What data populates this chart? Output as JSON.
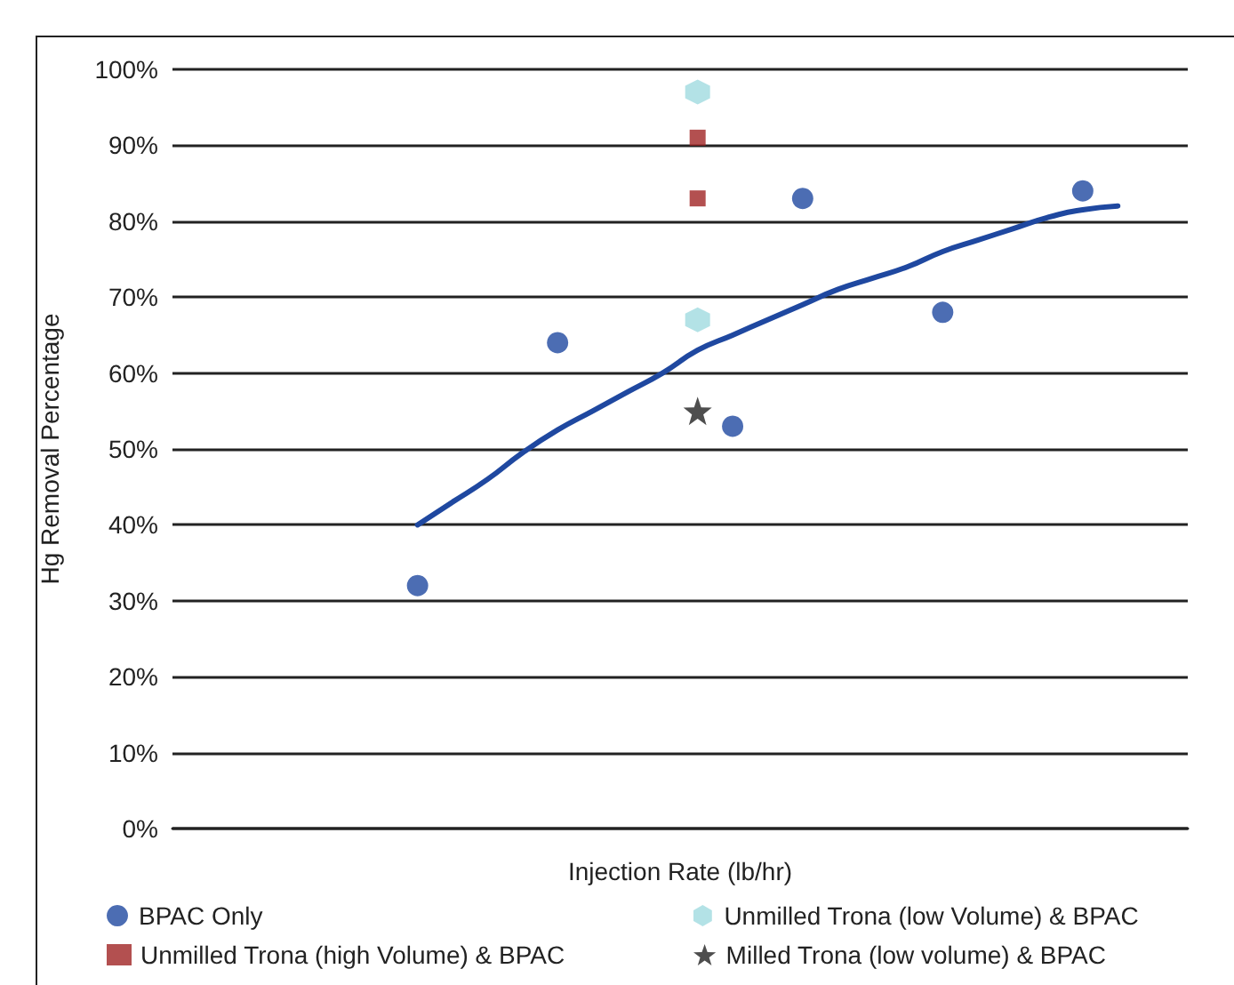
{
  "chart_data": {
    "type": "scatter",
    "xlabel": "Injection Rate (lb/hr)",
    "ylabel": "Hg Removal Percentage",
    "categories": [
      null,
      null,
      null,
      null,
      null,
      null,
      null,
      null,
      null,
      null,
      null,
      null,
      null,
      null,
      null,
      null,
      null,
      null,
      null,
      null,
      null,
      null,
      null,
      null,
      null,
      null,
      null,
      null,
      null,
      null
    ],
    "series": [
      {
        "name": "BPAC Only",
        "color": "#1f48a0",
        "marker": "circle",
        "values": [
          null,
          null,
          null,
          null,
          null,
          null,
          null,
          32,
          null,
          null,
          null,
          64,
          null,
          null,
          null,
          null,
          53,
          null,
          83,
          null,
          null,
          null,
          68,
          null,
          null,
          null,
          84,
          null,
          null,
          null
        ]
      },
      {
        "name": "Unmilled Trona (low Volume) & BPAC",
        "color": "#a0dbe0",
        "values": [
          null,
          null,
          null,
          null,
          null,
          null,
          null,
          null,
          null,
          null,
          null,
          null,
          null,
          null,
          null,
          97,
          null,
          null,
          null,
          null,
          null,
          null,
          null,
          null,
          null,
          null,
          null,
          null,
          null,
          null
        ]
      },
      {
        "name": "Unmilled Trona (high Volume) & BPAC",
        "color": "#a02424",
        "marker": "square",
        "values": [
          null,
          null,
          null,
          null,
          null,
          null,
          null,
          null,
          null,
          null,
          null,
          null,
          null,
          null,
          null,
          91,
          null,
          null,
          null,
          null,
          null,
          null,
          null,
          null,
          null,
          null,
          null,
          null,
          null,
          null
        ]
      },
      {
        "name": "Milled Trona (low volume) & BPAC",
        "color": "#222222",
        "marker": "star",
        "values": [
          null,
          null,
          null,
          null,
          null,
          null,
          null,
          null,
          null,
          null,
          null,
          null,
          null,
          null,
          null,
          55,
          null,
          null,
          null,
          null,
          null,
          null,
          null,
          null,
          null,
          null,
          null,
          null,
          null,
          null
        ]
      },
      {
        "color": "#a0dbe0",
        "values": [
          null,
          null,
          null,
          null,
          null,
          null,
          null,
          null,
          null,
          null,
          null,
          null,
          null,
          null,
          null,
          67,
          null,
          null,
          null,
          null,
          null,
          null,
          null,
          null,
          null,
          null,
          null,
          null,
          null,
          null
        ]
      },
      {
        "color": "#a02424",
        "marker": "square",
        "values": [
          null,
          null,
          null,
          null,
          null,
          null,
          null,
          null,
          null,
          null,
          null,
          null,
          null,
          null,
          null,
          83,
          null,
          null,
          null,
          null,
          null,
          null,
          null,
          null,
          null,
          null,
          null,
          null,
          null,
          null
        ]
      },
      {
        "type": "line",
        "color": "#1f48a0",
        "marker": "none",
        "values": [
          null,
          null,
          null,
          null,
          null,
          null,
          null,
          40,
          43,
          46,
          49.5,
          52.5,
          55,
          57.5,
          60,
          63,
          65,
          67,
          69,
          71,
          72.5,
          74,
          76,
          77.5,
          79,
          80.5,
          81.5,
          82,
          null,
          null
        ]
      }
    ],
    "ylim": [
      0,
      100
    ],
    "yticks": [
      {
        "value": 0,
        "label": "0%"
      },
      {
        "value": 10,
        "label": "10%"
      },
      {
        "value": 20,
        "label": "20%"
      },
      {
        "value": 30,
        "label": "30%"
      },
      {
        "value": 40,
        "label": "40%"
      },
      {
        "value": 50,
        "label": "50%"
      },
      {
        "value": 60,
        "label": "60%"
      },
      {
        "value": 70,
        "label": "70%"
      },
      {
        "value": 80,
        "label": "80%"
      },
      {
        "value": 90,
        "label": "90%"
      },
      {
        "value": 100,
        "label": "100%"
      }
    ],
    "grid": "y",
    "legend": "bottom",
    "tick_labels": "y"
  }
}
